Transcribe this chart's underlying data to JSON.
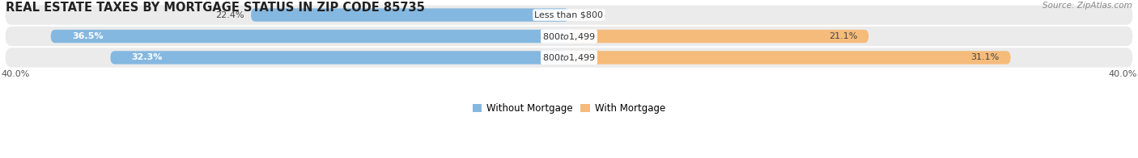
{
  "title": "REAL ESTATE TAXES BY MORTGAGE STATUS IN ZIP CODE 85735",
  "source": "Source: ZipAtlas.com",
  "rows": [
    {
      "label_center": "Less than $800",
      "without_mortgage": 22.4,
      "with_mortgage": 0.0
    },
    {
      "label_center": "$800 to $1,499",
      "without_mortgage": 36.5,
      "with_mortgage": 21.1
    },
    {
      "label_center": "$800 to $1,499",
      "without_mortgage": 32.3,
      "with_mortgage": 31.1
    }
  ],
  "xlim": [
    -40.0,
    40.0
  ],
  "x_left_label": "40.0%",
  "x_right_label": "40.0%",
  "color_without": "#85b8e0",
  "color_with": "#f5bb7a",
  "color_bg_row": "#ebebeb",
  "color_bg_row_alt": "#e2e2e2",
  "legend_without": "Without Mortgage",
  "legend_with": "With Mortgage",
  "bar_height": 0.62,
  "title_fontsize": 10.5,
  "label_fontsize": 8.0,
  "pct_fontsize": 8.0
}
